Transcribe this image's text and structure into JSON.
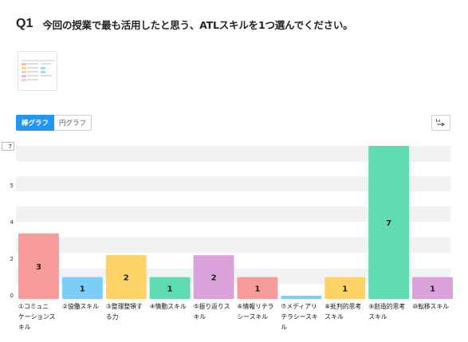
{
  "question": {
    "number": "Q1",
    "text": "今回の授業で最も活用したと思う、ATLスキルを1つ選んでください。"
  },
  "toggle": {
    "bar_label": "棒グラフ",
    "pie_label": "円グラフ",
    "active": "bar"
  },
  "export_button": {
    "icon": "export-icon"
  },
  "colors": {
    "accent": "#2196f3",
    "gridband": "#f1f2f3"
  },
  "chart_data": {
    "type": "bar",
    "categories": [
      "①コミュニケーションスキル",
      "②協働スキル",
      "③整理整頓する力",
      "④情動スキル",
      "⑤振り返りスキル",
      "⑥情報リテラシースキル",
      "⑦メディアリテラシースキル",
      "⑧批判的思考スキル",
      "⑨創造的思考スキル",
      "⑩転移スキル"
    ],
    "category_lines": [
      [
        "①コミュニ",
        "ケーションス",
        "キル"
      ],
      [
        "②協働スキル"
      ],
      [
        "③整理整頓す",
        "る力"
      ],
      [
        "④情動スキル"
      ],
      [
        "⑤振り返りス",
        "キル"
      ],
      [
        "⑥情報リテラ",
        "シースキル"
      ],
      [
        "⑦メディアリ",
        "テラシースキ",
        "ル"
      ],
      [
        "⑧批判的思考",
        "スキル"
      ],
      [
        "⑨創造的思考",
        "スキル"
      ],
      [
        "⑩転移スキル"
      ]
    ],
    "values": [
      3,
      1,
      2,
      1,
      2,
      1,
      0,
      1,
      7,
      1
    ],
    "bar_colors": [
      "#f79b9b",
      "#7ccdf7",
      "#fdd266",
      "#5fdbb0",
      "#d9a2da",
      "#f79b9b",
      "#7ccdf7",
      "#fdd266",
      "#5fdbb0",
      "#d9a2da"
    ],
    "yticks": [
      0,
      2,
      4,
      5,
      7
    ],
    "ylim": [
      0,
      7
    ],
    "top_tick_label": "7",
    "grid": true
  }
}
